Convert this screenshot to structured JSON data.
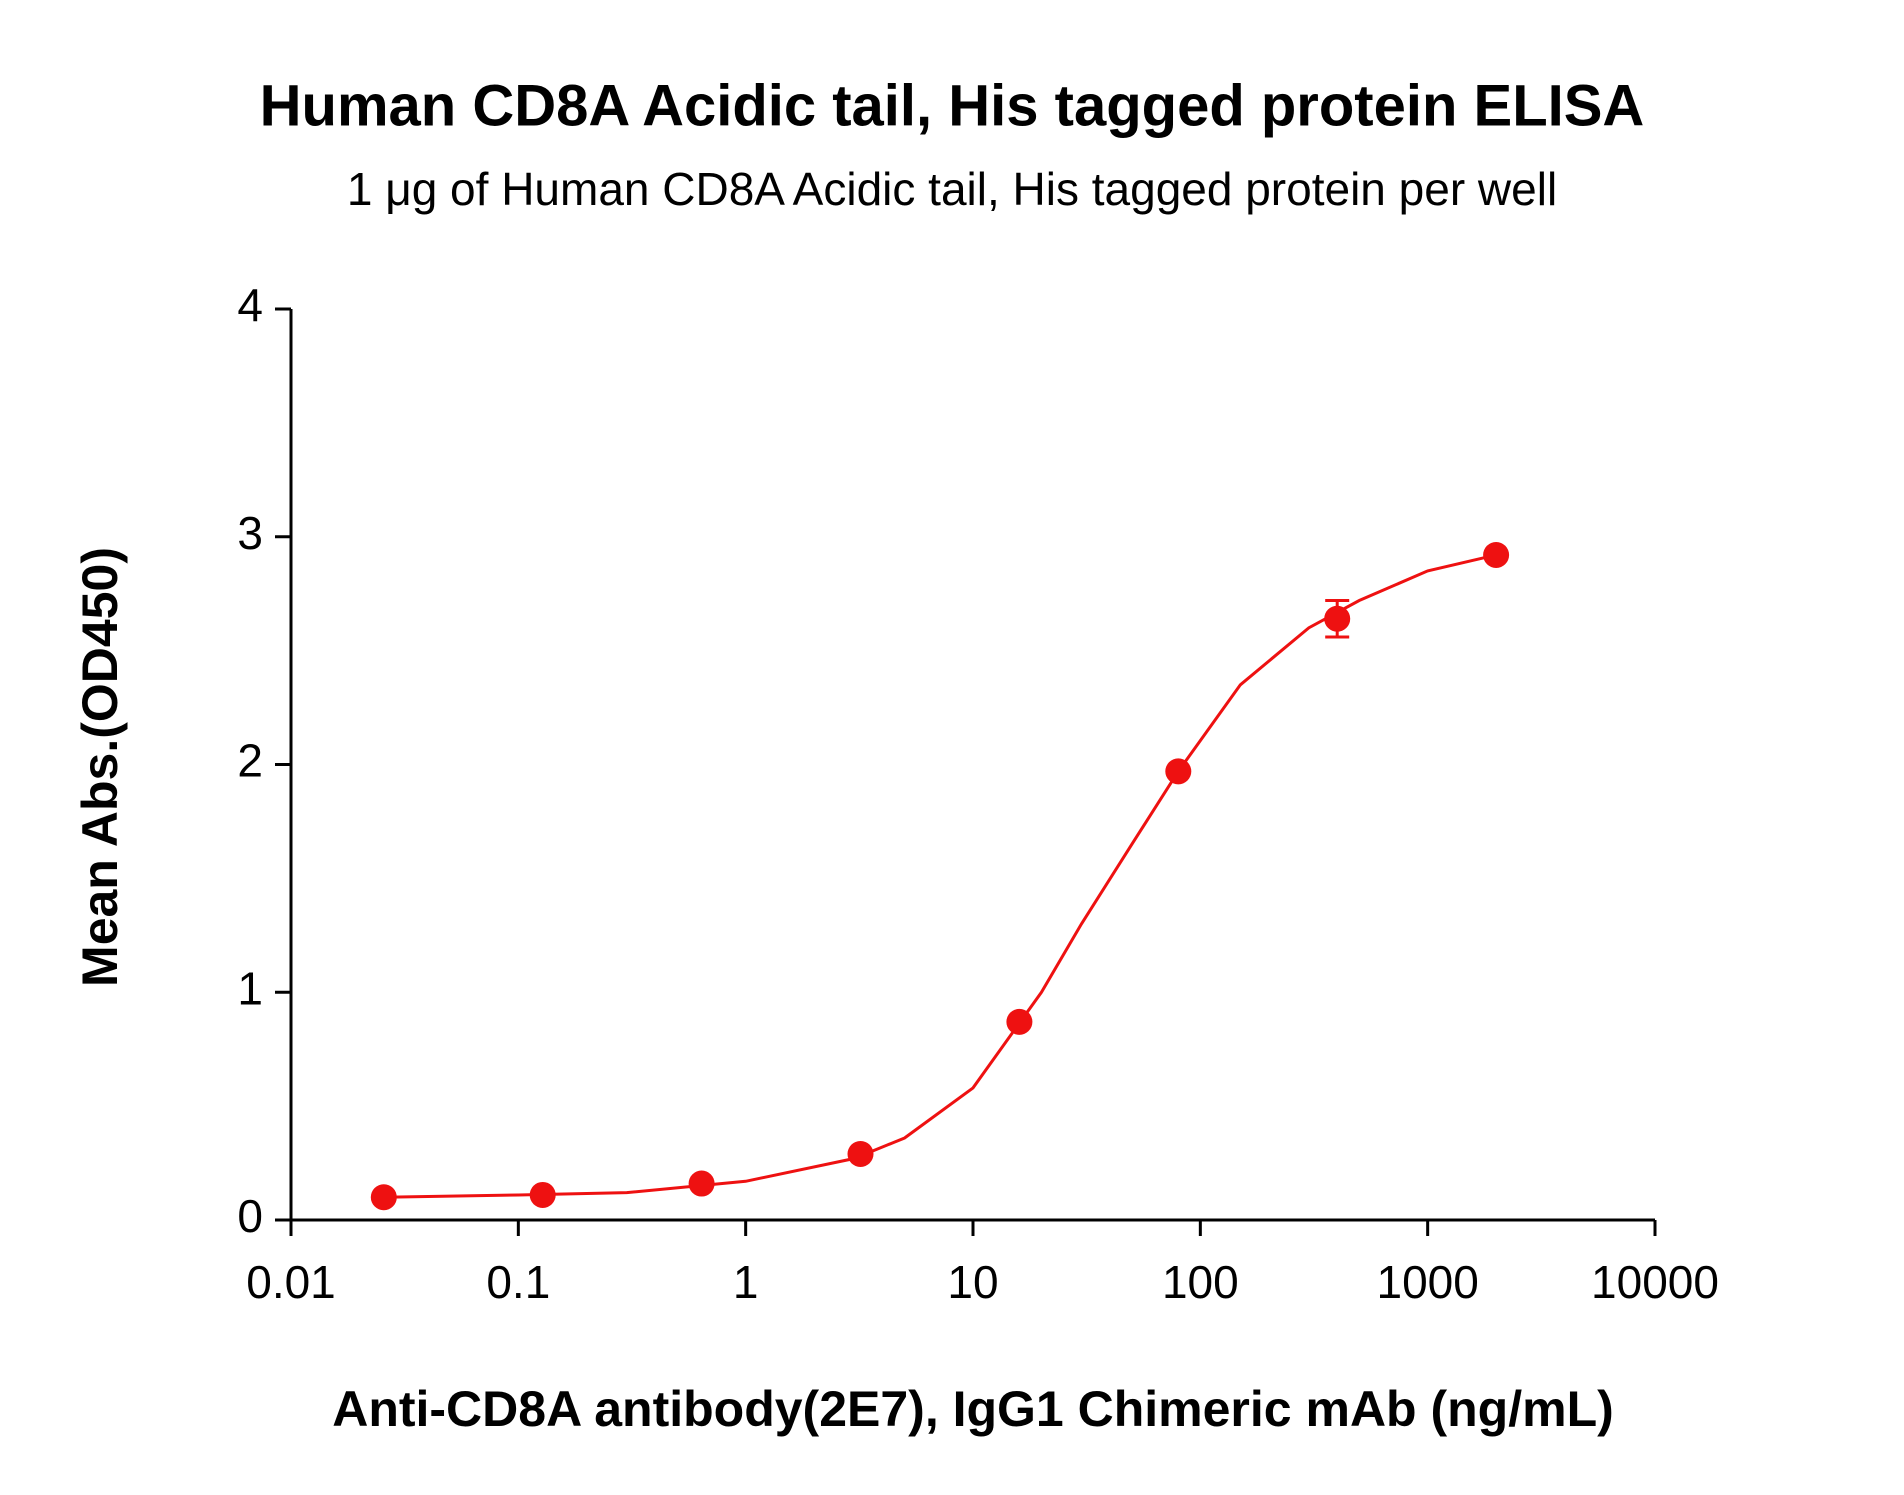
{
  "chart_data": {
    "type": "scatter",
    "title": "Human CD8A Acidic tail, His tagged protein ELISA",
    "subtitle": "1 μg of Human CD8A Acidic tail, His tagged protein per well",
    "x_label": "Anti-CD8A antibody(2E7), IgG1 Chimeric mAb (ng/mL)",
    "y_label": "Mean Abs.(OD450)",
    "x_scale": "log",
    "xlim": [
      0.01,
      10000
    ],
    "xticks": [
      0.01,
      0.1,
      1,
      10,
      100,
      1000,
      10000
    ],
    "ylim": [
      0,
      4
    ],
    "yticks": [
      0,
      1,
      2,
      3,
      4
    ],
    "grid": false,
    "series": [
      {
        "color": "#ee1111",
        "x": [
          0.0256,
          0.128,
          0.64,
          3.2,
          16,
          80,
          400,
          2000
        ],
        "values": [
          0.1,
          0.11,
          0.16,
          0.29,
          0.87,
          1.97,
          2.64,
          2.92
        ],
        "errors": [
          null,
          null,
          null,
          null,
          null,
          null,
          0.08,
          null
        ],
        "fit": {
          "x": [
            0.0256,
            0.1,
            0.3,
            1,
            3,
            5,
            10,
            20,
            30,
            50,
            80,
            150,
            300,
            500,
            1000,
            2000
          ],
          "y": [
            0.1,
            0.11,
            0.12,
            0.17,
            0.27,
            0.36,
            0.58,
            1.0,
            1.3,
            1.65,
            1.97,
            2.35,
            2.6,
            2.72,
            2.85,
            2.92
          ]
        }
      }
    ]
  }
}
